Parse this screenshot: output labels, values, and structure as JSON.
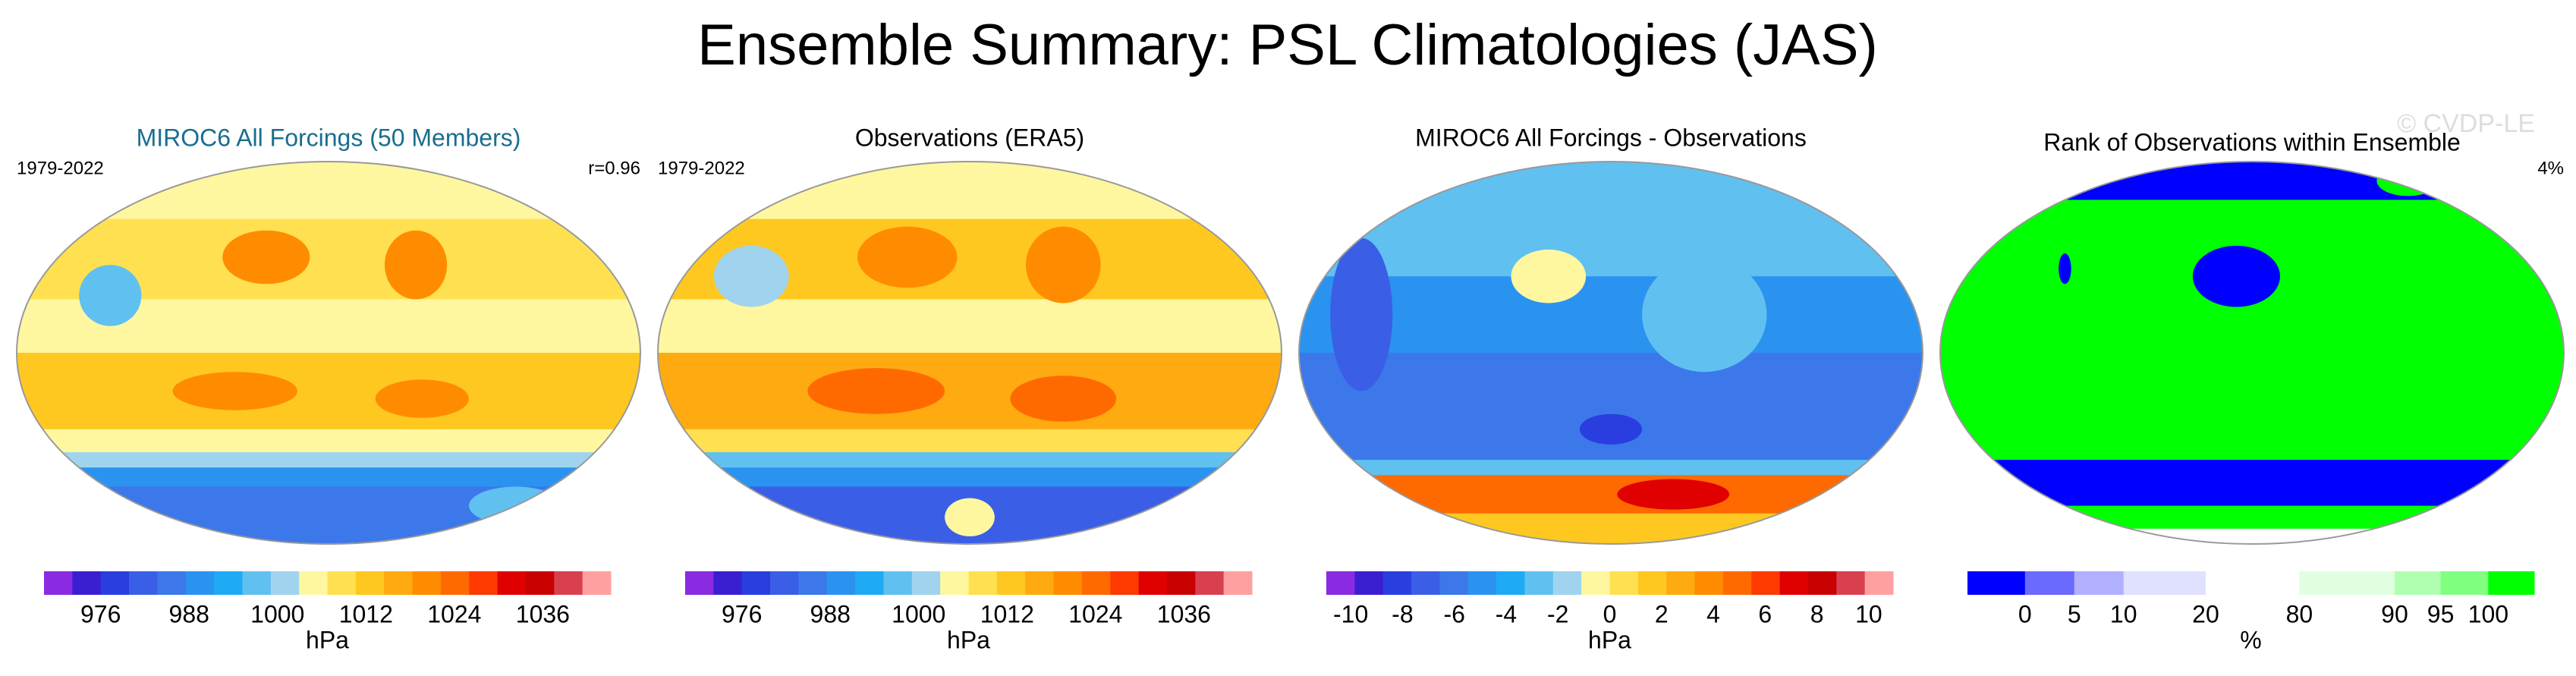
{
  "title": "Ensemble Summary: PSL Climatologies (JAS)",
  "watermark": "© CVDP-LE",
  "panels": [
    {
      "title": "MIROC6 All Forcings (50 Members)",
      "left": "1979-2022",
      "right": "r=0.96",
      "colorbar": {
        "ticks": [
          976,
          988,
          1000,
          1012,
          1024,
          1036
        ],
        "unit": "hPa",
        "colors": [
          "#8a2be2",
          "#3a1fd0",
          "#2a3ee0",
          "#3a5fe6",
          "#3c78ea",
          "#2a93f0",
          "#1eaaf5",
          "#60c0f0",
          "#a0d4ee",
          "#fff7a0",
          "#ffe050",
          "#ffc820",
          "#ffaa10",
          "#ff8c00",
          "#ff6a00",
          "#ff3a00",
          "#e00000",
          "#c80000",
          "#d84050",
          "#ffa0a0"
        ]
      }
    },
    {
      "title": "Observations (ERA5)",
      "left": "1979-2022",
      "colorbar": {
        "ticks": [
          976,
          988,
          1000,
          1012,
          1024,
          1036
        ],
        "unit": "hPa",
        "colors": [
          "#8a2be2",
          "#3a1fd0",
          "#2a3ee0",
          "#3a5fe6",
          "#3c78ea",
          "#2a93f0",
          "#1eaaf5",
          "#60c0f0",
          "#a0d4ee",
          "#fff7a0",
          "#ffe050",
          "#ffc820",
          "#ffaa10",
          "#ff8c00",
          "#ff6a00",
          "#ff3a00",
          "#e00000",
          "#c80000",
          "#d84050",
          "#ffa0a0"
        ]
      }
    },
    {
      "title": "MIROC6 All Forcings - Observations",
      "colorbar": {
        "ticks": [
          -10,
          -8,
          -6,
          -4,
          -2,
          0,
          2,
          4,
          6,
          8,
          10
        ],
        "unit": "hPa",
        "colors": [
          "#8a2be2",
          "#3a1fd0",
          "#2a3ee0",
          "#3a5fe6",
          "#3c78ea",
          "#2a93f0",
          "#1eaaf5",
          "#60c0f0",
          "#a0d4ee",
          "#fff7a0",
          "#ffe050",
          "#ffc820",
          "#ffaa10",
          "#ff8c00",
          "#ff6a00",
          "#ff3a00",
          "#e00000",
          "#c80000",
          "#d84050",
          "#ffa0a0"
        ]
      }
    },
    {
      "title": "Rank of Observations within Ensemble",
      "right": "4%",
      "colorbar": {
        "ticks": [
          0,
          5,
          10,
          20,
          80,
          90,
          95,
          100
        ],
        "unit": "%",
        "colors": [
          "#0000ff",
          "#6a6aff",
          "#b0b0ff",
          "#e0e0ff",
          "#ffffff",
          "#e0ffe0",
          "#b0ffb0",
          "#80ff80",
          "#00ff00"
        ]
      }
    }
  ]
}
